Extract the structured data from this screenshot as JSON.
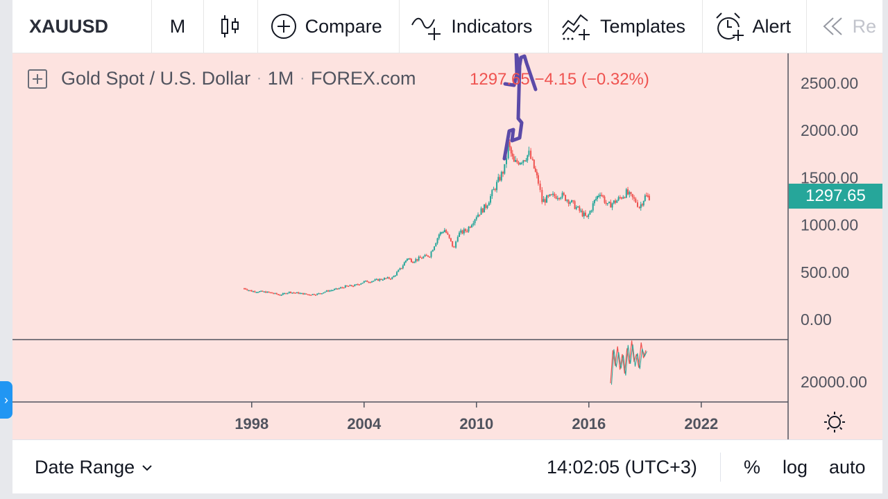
{
  "toolbar": {
    "symbol": "XAUUSD",
    "interval": "M",
    "compare_label": "Compare",
    "indicators_label": "Indicators",
    "templates_label": "Templates",
    "alert_label": "Alert",
    "replay_label": "Re"
  },
  "legend": {
    "name": "Gold Spot / U.S. Dollar",
    "interval": "1M",
    "source": "FOREX.com",
    "separator": "·"
  },
  "quote": {
    "price": "1297.65",
    "change": "−4.15 (−0.32%)"
  },
  "price_axis": {
    "ticks": [
      "2500.00",
      "2000.00",
      "1500.00",
      "1000.00",
      "500.00",
      "0.00"
    ],
    "current_price": "1297.65"
  },
  "volume_axis": {
    "tick": "20000.00"
  },
  "time_axis": {
    "ticks": [
      "1998",
      "2004",
      "2010",
      "2016",
      "2022"
    ]
  },
  "bottom_bar": {
    "date_range_label": "Date Range",
    "clock": "14:02:05 (UTC+3)",
    "percent_label": "%",
    "log_label": "log",
    "auto_label": "auto"
  },
  "colors": {
    "chart_background": "#fde3e0",
    "up_candle": "#26a69a",
    "down_candle": "#ef5350",
    "price_badge": "#26a69a",
    "annotation": "#5b4aa8",
    "side_tab": "#2196f3"
  },
  "chart_data": {
    "type": "candlestick",
    "interval": "1M",
    "series": [
      {
        "name": "XAUUSD",
        "points": [
          [
            1997.6,
            330
          ],
          [
            1998.0,
            300
          ],
          [
            1998.5,
            295
          ],
          [
            1999.0,
            285
          ],
          [
            1999.5,
            260
          ],
          [
            2000.0,
            290
          ],
          [
            2000.5,
            280
          ],
          [
            2001.0,
            265
          ],
          [
            2001.5,
            270
          ],
          [
            2002.0,
            300
          ],
          [
            2002.5,
            320
          ],
          [
            2003.0,
            350
          ],
          [
            2003.5,
            360
          ],
          [
            2004.0,
            400
          ],
          [
            2004.5,
            410
          ],
          [
            2005.0,
            430
          ],
          [
            2005.5,
            440
          ],
          [
            2006.0,
            550
          ],
          [
            2006.3,
            650
          ],
          [
            2006.6,
            620
          ],
          [
            2007.0,
            650
          ],
          [
            2007.5,
            680
          ],
          [
            2008.0,
            900
          ],
          [
            2008.3,
            950
          ],
          [
            2008.8,
            750
          ],
          [
            2009.0,
            900
          ],
          [
            2009.5,
            950
          ],
          [
            2010.0,
            1100
          ],
          [
            2010.5,
            1200
          ],
          [
            2011.0,
            1400
          ],
          [
            2011.5,
            1600
          ],
          [
            2011.7,
            1850
          ],
          [
            2012.0,
            1650
          ],
          [
            2012.5,
            1700
          ],
          [
            2012.8,
            1750
          ],
          [
            2013.0,
            1650
          ],
          [
            2013.3,
            1450
          ],
          [
            2013.5,
            1250
          ],
          [
            2014.0,
            1300
          ],
          [
            2014.5,
            1320
          ],
          [
            2015.0,
            1250
          ],
          [
            2015.5,
            1150
          ],
          [
            2015.9,
            1070
          ],
          [
            2016.3,
            1250
          ],
          [
            2016.6,
            1350
          ],
          [
            2017.0,
            1200
          ],
          [
            2017.5,
            1260
          ],
          [
            2018.0,
            1340
          ],
          [
            2018.5,
            1250
          ],
          [
            2018.7,
            1190
          ],
          [
            2019.0,
            1300
          ],
          [
            2019.3,
            1297.65
          ]
        ]
      }
    ],
    "volume": {
      "values": [
        5000,
        22000,
        14000,
        24000,
        12000,
        20000,
        10000,
        23000,
        15000,
        27000,
        16000,
        20000,
        13000,
        26000,
        18000,
        22000
      ]
    },
    "ylim": [
      0,
      2700
    ],
    "xlim": [
      1990,
      2025
    ],
    "y_ticks": [
      2500,
      2000,
      1500,
      1000,
      500,
      0
    ],
    "x_ticks": [
      1998,
      2004,
      2010,
      2016,
      2022
    ],
    "grid": false,
    "legend": "top-left",
    "annotation": "hand-drawn upward arrow above the 2011 peak"
  }
}
